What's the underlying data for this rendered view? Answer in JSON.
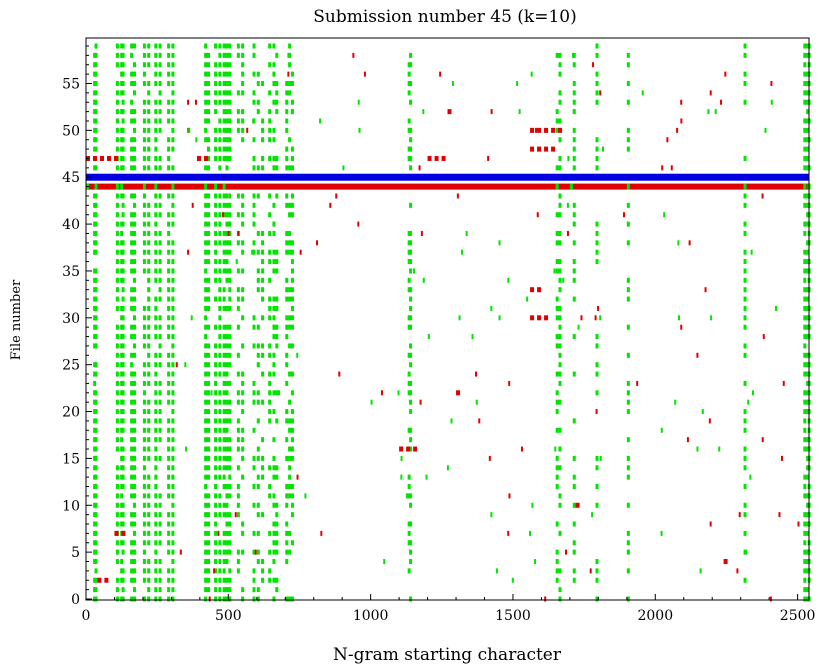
{
  "chart_data": {
    "type": "heatmap",
    "title": "Submission number 45 (k=10)",
    "xlabel": "N-gram starting character",
    "ylabel": "File number",
    "xlim": [
      0,
      2540
    ],
    "ylim": [
      0,
      59
    ],
    "x_ticks": [
      0,
      500,
      1000,
      1500,
      2000,
      2500
    ],
    "y_ticks": [
      0,
      5,
      10,
      15,
      20,
      25,
      30,
      35,
      40,
      45,
      50,
      55
    ],
    "grid": false,
    "legend": "none",
    "highlighted_file": 45,
    "colors": {
      "shared_common": "#00e400",
      "shared_unique": "#e00000",
      "submission_row": "#0000e0",
      "axis": "#000000"
    },
    "series": [
      {
        "name": "",
        "color": "#00e400",
        "column_groups": [
          {
            "x": [
              25,
              30
            ],
            "files": "all"
          },
          {
            "x": [
              105,
              120,
              125
            ],
            "files": "all"
          },
          {
            "x": [
              155,
              165
            ],
            "files": "all"
          },
          {
            "x": [
              200,
              215,
              240,
              255
            ],
            "files": "all"
          },
          {
            "x": [
              285,
              300
            ],
            "files": "all"
          },
          {
            "x": [
              415,
              425
            ],
            "files": "all"
          },
          {
            "x": [
              450,
              465,
              480,
              490,
              500
            ],
            "files": "all"
          },
          {
            "x": [
              530,
              545
            ],
            "files": "most"
          },
          {
            "x": [
              585,
              600,
              615,
              640,
              655,
              665
            ],
            "files": "most"
          },
          {
            "x": [
              700,
              710,
              720
            ],
            "files": "most"
          },
          {
            "x": [
              1130,
              1135
            ],
            "files": "most"
          },
          {
            "x": [
              1650,
              1660
            ],
            "files": "most"
          },
          {
            "x": [
              1710
            ],
            "files": "most"
          },
          {
            "x": [
              1790
            ],
            "files": "most"
          },
          {
            "x": [
              1900
            ],
            "files": "most"
          },
          {
            "x": [
              2310
            ],
            "files": "most"
          },
          {
            "x": [
              2520,
              2530,
              2535
            ],
            "files": "all"
          }
        ]
      },
      {
        "name": "",
        "color": "#e00000",
        "full_row_file": 44,
        "full_row_x": [
          0,
          2540
        ],
        "segments": [
          {
            "file": 47,
            "x": [
              0,
              100
            ]
          },
          {
            "file": 47,
            "x": [
              390,
              430
            ]
          },
          {
            "file": 47,
            "x": [
              1200,
              1260
            ]
          },
          {
            "file": 48,
            "x": [
              1560,
              1640
            ]
          },
          {
            "file": 50,
            "x": [
              1560,
              1660
            ]
          },
          {
            "file": 52,
            "x": [
              1270,
              1290
            ]
          },
          {
            "file": 33,
            "x": [
              1560,
              1600
            ]
          },
          {
            "file": 30,
            "x": [
              1560,
              1620
            ]
          },
          {
            "file": 22,
            "x": [
              1300,
              1320
            ]
          },
          {
            "file": 16,
            "x": [
              1100,
              1150
            ]
          },
          {
            "file": 10,
            "x": [
              1720,
              1740
            ]
          },
          {
            "file": 7,
            "x": [
              100,
              140
            ]
          },
          {
            "file": 4,
            "x": [
              2240,
              2260
            ]
          },
          {
            "file": 2,
            "x": [
              40,
              80
            ]
          }
        ]
      }
    ]
  }
}
